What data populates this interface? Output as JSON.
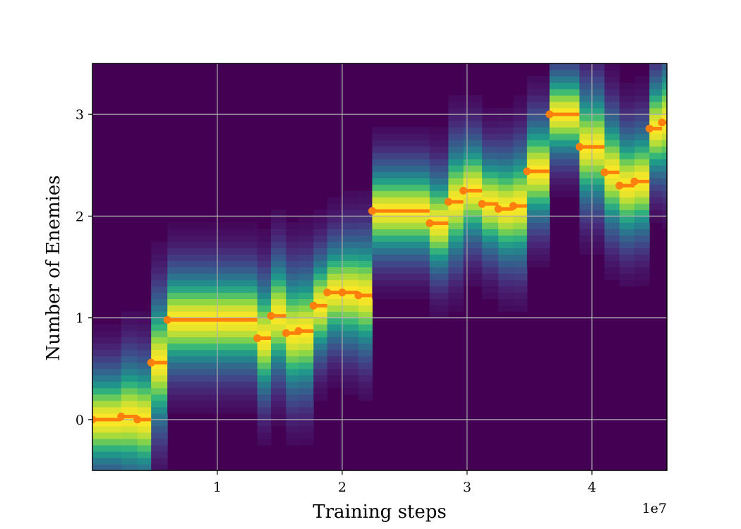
{
  "chart_data": {
    "type": "heatmap",
    "xlabel": "Training steps",
    "ylabel": "Number of Enemies",
    "x_offset_label": "1e7",
    "xlim": [
      0,
      4.6
    ],
    "ylim": [
      -0.5,
      3.5
    ],
    "xticks": [
      1,
      2,
      3,
      4
    ],
    "xtick_labels": [
      "1",
      "2",
      "3",
      "4"
    ],
    "yticks": [
      0,
      1,
      2,
      3
    ],
    "ytick_labels": [
      "0",
      "1",
      "2",
      "3"
    ],
    "grid": true,
    "colormap": "viridis",
    "background_color": "#440154",
    "marker_color": "#ff7f0e",
    "segments": [
      {
        "x_start": 0.0,
        "x_end": 0.23,
        "mean": 0.0,
        "std": 0.35
      },
      {
        "x_start": 0.23,
        "x_end": 0.36,
        "mean": 0.03,
        "std": 0.4
      },
      {
        "x_start": 0.36,
        "x_end": 0.47,
        "mean": 0.0,
        "std": 0.4
      },
      {
        "x_start": 0.47,
        "x_end": 0.6,
        "mean": 0.56,
        "std": 0.45
      },
      {
        "x_start": 0.6,
        "x_end": 1.32,
        "mean": 0.98,
        "std": 0.35
      },
      {
        "x_start": 1.32,
        "x_end": 1.43,
        "mean": 0.8,
        "std": 0.4
      },
      {
        "x_start": 1.43,
        "x_end": 1.55,
        "mean": 1.02,
        "std": 0.4
      },
      {
        "x_start": 1.55,
        "x_end": 1.65,
        "mean": 0.85,
        "std": 0.42
      },
      {
        "x_start": 1.65,
        "x_end": 1.77,
        "mean": 0.87,
        "std": 0.42
      },
      {
        "x_start": 1.77,
        "x_end": 1.88,
        "mean": 1.12,
        "std": 0.35
      },
      {
        "x_start": 1.88,
        "x_end": 2.0,
        "mean": 1.25,
        "std": 0.35
      },
      {
        "x_start": 2.0,
        "x_end": 2.13,
        "mean": 1.25,
        "std": 0.38
      },
      {
        "x_start": 2.13,
        "x_end": 2.24,
        "mean": 1.22,
        "std": 0.4
      },
      {
        "x_start": 2.24,
        "x_end": 2.7,
        "mean": 2.05,
        "std": 0.32
      },
      {
        "x_start": 2.7,
        "x_end": 2.85,
        "mean": 1.93,
        "std": 0.35
      },
      {
        "x_start": 2.85,
        "x_end": 2.97,
        "mean": 2.14,
        "std": 0.4
      },
      {
        "x_start": 2.97,
        "x_end": 3.12,
        "mean": 2.25,
        "std": 0.36
      },
      {
        "x_start": 3.12,
        "x_end": 3.25,
        "mean": 2.12,
        "std": 0.35
      },
      {
        "x_start": 3.25,
        "x_end": 3.37,
        "mean": 2.07,
        "std": 0.38
      },
      {
        "x_start": 3.37,
        "x_end": 3.48,
        "mean": 2.1,
        "std": 0.4
      },
      {
        "x_start": 3.48,
        "x_end": 3.66,
        "mean": 2.44,
        "std": 0.36
      },
      {
        "x_start": 3.66,
        "x_end": 3.9,
        "mean": 3.0,
        "std": 0.3
      },
      {
        "x_start": 3.9,
        "x_end": 4.1,
        "mean": 2.68,
        "std": 0.4
      },
      {
        "x_start": 4.1,
        "x_end": 4.22,
        "mean": 2.43,
        "std": 0.4
      },
      {
        "x_start": 4.22,
        "x_end": 4.34,
        "mean": 2.3,
        "std": 0.38
      },
      {
        "x_start": 4.34,
        "x_end": 4.46,
        "mean": 2.34,
        "std": 0.38
      },
      {
        "x_start": 4.46,
        "x_end": 4.56,
        "mean": 2.86,
        "std": 0.35
      },
      {
        "x_start": 4.56,
        "x_end": 4.6,
        "mean": 2.92,
        "std": 0.4
      }
    ]
  }
}
